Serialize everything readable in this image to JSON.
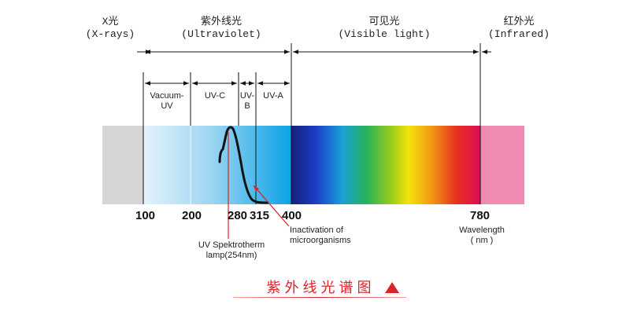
{
  "bands": [
    {
      "name_cn": "X光",
      "name_en": "(X-rays)"
    },
    {
      "name_cn": "紫外线光",
      "name_en": "(Ultraviolet)"
    },
    {
      "name_cn": "可见光",
      "name_en": "(Visible light)"
    },
    {
      "name_cn": "红外光",
      "name_en": "(Infrared)"
    }
  ],
  "uv_subbands": [
    {
      "lines": [
        "Vacuum-",
        "UV"
      ]
    },
    {
      "lines": [
        "UV-C"
      ]
    },
    {
      "lines": [
        "UV-",
        "B"
      ]
    },
    {
      "lines": [
        "UV-A"
      ]
    }
  ],
  "ticks": [
    "100",
    "200",
    "280",
    "315",
    "400",
    "780"
  ],
  "annotations": {
    "lamp": [
      "UV Spektrotherm",
      "lamp(254nm)"
    ],
    "inactivation": [
      "Inactivation of",
      "microorganisms"
    ],
    "wavelength": [
      "Wavelength",
      "( nm )"
    ]
  },
  "caption": "紫外线光谱图",
  "colors": {
    "xray": "#d6d6d6",
    "infrared": "#ef8ab2",
    "lamp_curve": "#111111",
    "pointer": "#e02020",
    "caption": "#e0202a"
  }
}
